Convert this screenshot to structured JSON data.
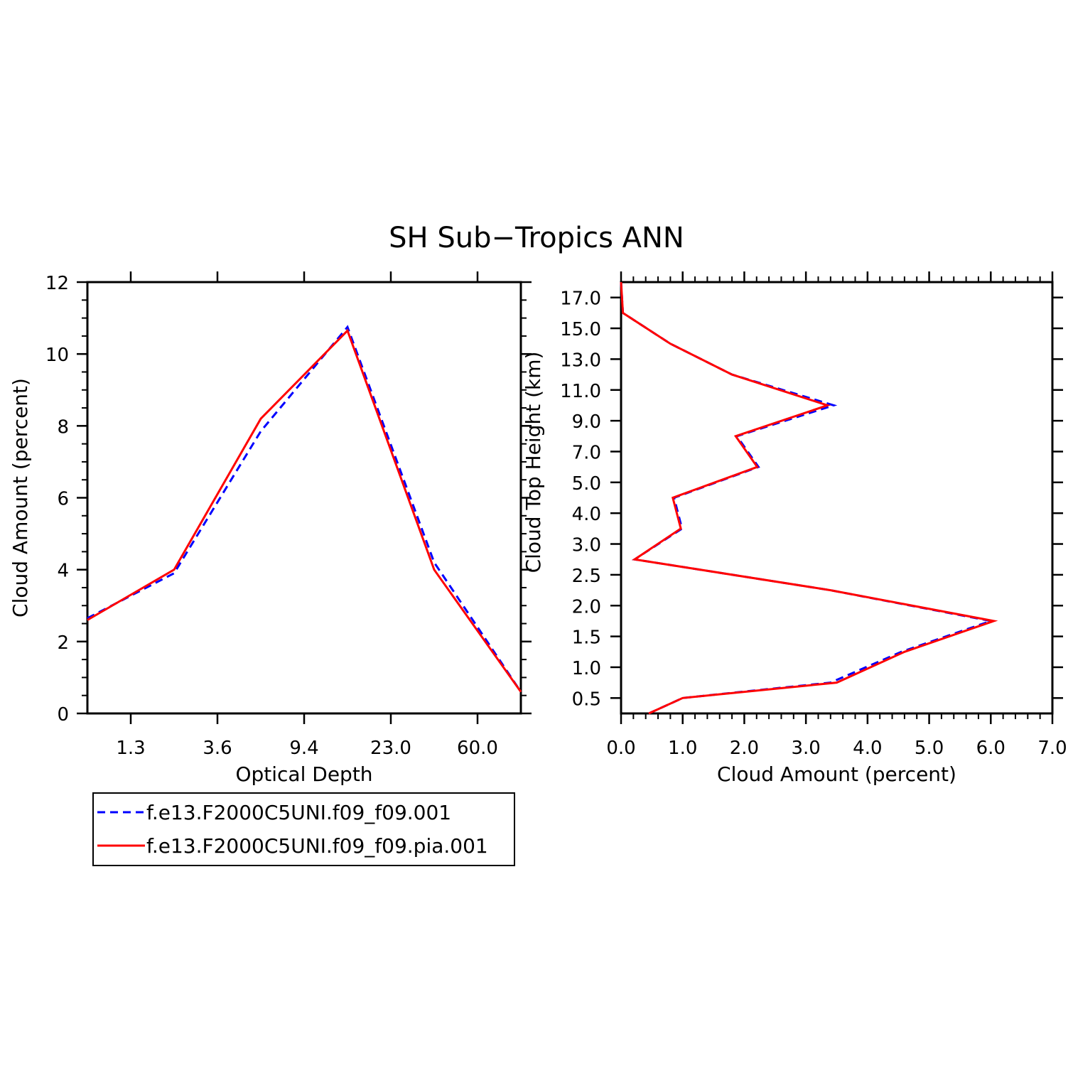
{
  "figure": {
    "title": "SH Sub−Tropics ANN"
  },
  "legend": {
    "entries": [
      {
        "label": "f.e13.F2000C5UNI.f09_f09.001",
        "color": "#0000ff",
        "dash": "dashed"
      },
      {
        "label": "f.e13.F2000C5UNI.f09_f09.pia.001",
        "color": "#ff0000",
        "dash": "solid"
      }
    ]
  },
  "chart_data": [
    {
      "type": "line",
      "xlabel": "Optical Depth",
      "ylabel": "Cloud Amount (percent)",
      "x_scale": "categorical",
      "x_tick_labels": [
        "1.3",
        "3.6",
        "9.4",
        "23.0",
        "60.0"
      ],
      "x_tick_positions": [
        1,
        3,
        5,
        7,
        9
      ],
      "x_range": [
        0,
        10
      ],
      "ylim": [
        0,
        12
      ],
      "y_ticks": [
        0,
        2,
        4,
        6,
        8,
        10,
        12
      ],
      "y_minor_step": 0.5,
      "series": [
        {
          "name": "f.e13.F2000C5UNI.f09_f09.001",
          "color": "#0000ff",
          "dash": "dashed",
          "x": [
            0,
            2,
            4,
            6,
            8,
            10
          ],
          "y": [
            2.65,
            3.9,
            7.85,
            10.75,
            4.2,
            0.6
          ]
        },
        {
          "name": "f.e13.F2000C5UNI.f09_f09.pia.001",
          "color": "#ff0000",
          "dash": "solid",
          "x": [
            0,
            2,
            4,
            6,
            8,
            10
          ],
          "y": [
            2.6,
            4.0,
            8.2,
            10.65,
            4.0,
            0.6
          ]
        }
      ]
    },
    {
      "type": "line",
      "xlabel": "Cloud Amount (percent)",
      "ylabel": "Cloud Top Height (km)",
      "xlim": [
        0,
        7
      ],
      "x_tick_labels": [
        "0.0",
        "1.0",
        "2.0",
        "3.0",
        "4.0",
        "5.0",
        "6.0",
        "7.0"
      ],
      "x_ticks": [
        0,
        1,
        2,
        3,
        4,
        5,
        6,
        7
      ],
      "x_minor_step": 0.2,
      "y_scale": "categorical",
      "y_range": [
        0,
        14
      ],
      "y_tick_labels": [
        "0.5",
        "1.0",
        "1.5",
        "2.0",
        "2.5",
        "3.0",
        "4.0",
        "5.0",
        "7.0",
        "9.0",
        "11.0",
        "13.0",
        "15.0",
        "17.0"
      ],
      "y_tick_positions": [
        0.5,
        1.5,
        2.5,
        3.5,
        4.5,
        5.5,
        6.5,
        7.5,
        8.5,
        9.5,
        10.5,
        11.5,
        12.5,
        13.5
      ],
      "series": [
        {
          "name": "f.e13.F2000C5UNI.f09_f09.001",
          "color": "#0000ff",
          "dash": "dashed",
          "x": [
            0.45,
            1.0,
            3.4,
            4.55,
            6.0,
            3.4,
            0.22,
            0.99,
            0.86,
            2.23,
            1.88,
            3.45,
            1.8,
            0.8,
            0.03,
            0.0
          ],
          "y": [
            0,
            0.5,
            1.0,
            2.0,
            3.0,
            4.0,
            5.0,
            6.0,
            7.0,
            8.0,
            9.0,
            10.0,
            11.0,
            12.0,
            13.0,
            14.0
          ]
        },
        {
          "name": "f.e13.F2000C5UNI.f09_f09.pia.001",
          "color": "#ff0000",
          "dash": "solid",
          "x": [
            0.45,
            1.0,
            3.5,
            4.6,
            6.05,
            3.4,
            0.22,
            0.97,
            0.84,
            2.21,
            1.86,
            3.35,
            1.8,
            0.8,
            0.03,
            0.0
          ],
          "y": [
            0,
            0.5,
            1.0,
            2.0,
            3.0,
            4.0,
            5.0,
            6.0,
            7.0,
            8.0,
            9.0,
            10.0,
            11.0,
            12.0,
            13.0,
            14.0
          ]
        }
      ]
    }
  ]
}
